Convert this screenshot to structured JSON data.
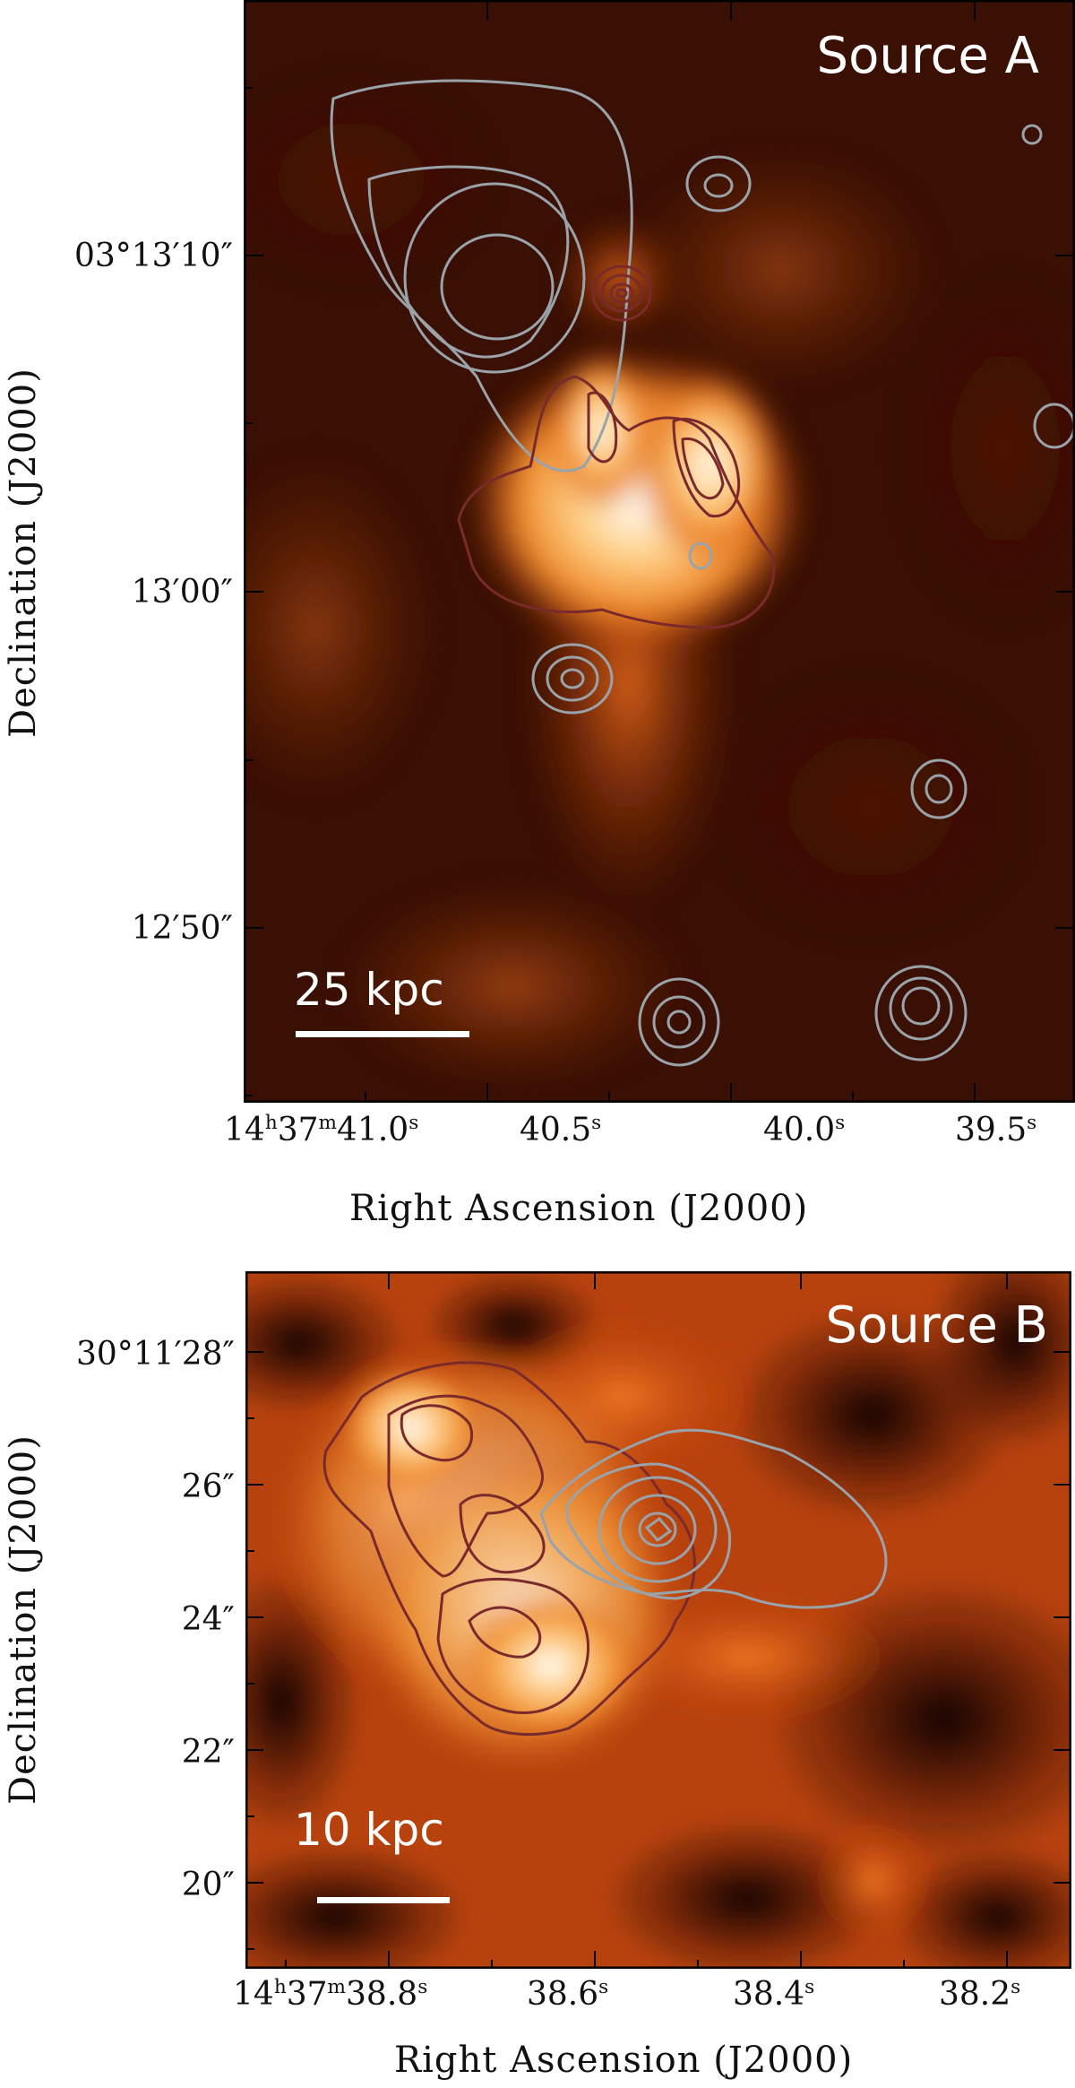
{
  "panels": {
    "a": {
      "label": "Source A",
      "scale_bar": "25 kpc",
      "y_ticks": [
        "03°13′10″",
        "13′00″",
        "12′50″"
      ],
      "x_ticks": [
        {
          "h": "14",
          "m": "37",
          "s": "41.0"
        },
        {
          "s": "40.5"
        },
        {
          "s": "40.0"
        },
        {
          "s": "39.5"
        }
      ],
      "xlabel": "Right Ascension (J2000)",
      "ylabel": "Declination (J2000)"
    },
    "b": {
      "label": "Source B",
      "scale_bar": "10 kpc",
      "y_ticks": [
        "30°11′28″",
        "26″",
        "24″",
        "22″",
        "20″"
      ],
      "x_ticks": [
        {
          "h": "14",
          "m": "37",
          "s": "38.8"
        },
        {
          "s": "38.6"
        },
        {
          "s": "38.4"
        },
        {
          "s": "38.2"
        }
      ],
      "xlabel": "Right Ascension (J2000)",
      "ylabel": "Declination (J2000)"
    }
  },
  "colors": {
    "background_dark": "#1a0602",
    "emission_mid": "#c2410c",
    "emission_bright": "#fff7e6",
    "contour_grey": "#9aa3aa",
    "contour_maroon": "#7a2a2a"
  }
}
